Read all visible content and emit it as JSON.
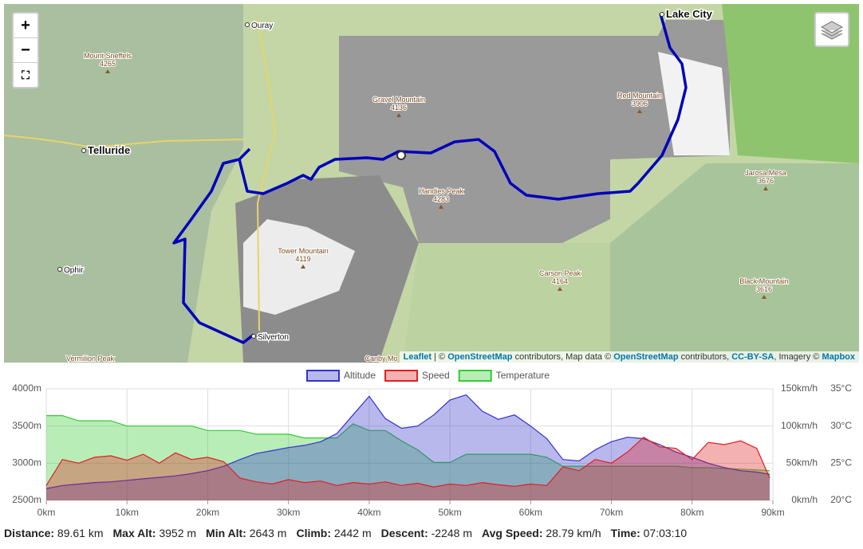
{
  "map": {
    "places": [
      {
        "name": "Ouray"
      },
      {
        "name": "Lake City"
      },
      {
        "name": "Telluride"
      },
      {
        "name": "Ophir"
      },
      {
        "name": "Silverton"
      }
    ],
    "peaks": [
      {
        "name": "Mount Sneffels",
        "elev": "4265"
      },
      {
        "name": "Gravel Mountain",
        "elev": "4136"
      },
      {
        "name": "Red Mountain",
        "elev": "3906"
      },
      {
        "name": "Jarosa Mesa",
        "elev": "3676"
      },
      {
        "name": "Handies Peak",
        "elev": "4283"
      },
      {
        "name": "Tower Mountain",
        "elev": "4119"
      },
      {
        "name": "Carson Peak",
        "elev": "4164"
      },
      {
        "name": "Black Mountain",
        "elev": "3616"
      },
      {
        "name": "Canby Mo"
      },
      {
        "name": "Vermilion Peak"
      }
    ],
    "zoom": [
      "+",
      "−"
    ],
    "attribution": [
      {
        "text": "Leaflet",
        "link": true
      },
      {
        "text": " | © "
      },
      {
        "text": "OpenStreetMap",
        "link": true
      },
      {
        "text": " contributors, Map data © "
      },
      {
        "text": "OpenStreetMap",
        "link": true
      },
      {
        "text": " contributors, "
      },
      {
        "text": "CC-BY-SA",
        "link": true
      },
      {
        "text": ", Imagery © "
      },
      {
        "text": "Mapbox",
        "link": true
      }
    ]
  },
  "chart_data": {
    "type": "area",
    "x": [
      0,
      2,
      4,
      6,
      8,
      10,
      12,
      14,
      16,
      18,
      20,
      22,
      24,
      26,
      28,
      30,
      32,
      34,
      36,
      38,
      40,
      42,
      44,
      46,
      48,
      50,
      52,
      54,
      56,
      58,
      60,
      62,
      64,
      66,
      68,
      70,
      72,
      74,
      76,
      78,
      80,
      82,
      84,
      86,
      88,
      89.6
    ],
    "series": [
      {
        "name": "Temperature",
        "color": "#33cc33",
        "axis": "y3",
        "values": [
          31.4,
          31.4,
          30.7,
          30.7,
          30.7,
          30.0,
          30.0,
          30.0,
          30.0,
          30.0,
          29.4,
          29.4,
          29.4,
          28.9,
          28.9,
          28.9,
          28.4,
          28.4,
          28.4,
          30.3,
          29.4,
          29.4,
          28.0,
          26.8,
          25.1,
          25.1,
          26.2,
          26.2,
          26.2,
          26.2,
          26.2,
          25.8,
          24.6,
          24.6,
          24.6,
          24.6,
          24.6,
          24.6,
          24.6,
          24.6,
          24.4,
          24.4,
          24.3,
          24.2,
          24.1,
          24.0
        ]
      },
      {
        "name": "Altitude",
        "color": "#3333cc",
        "axis": "y",
        "values": [
          2660,
          2700,
          2720,
          2740,
          2750,
          2770,
          2790,
          2810,
          2830,
          2860,
          2900,
          2960,
          3050,
          3130,
          3170,
          3210,
          3240,
          3290,
          3400,
          3650,
          3900,
          3600,
          3470,
          3500,
          3650,
          3850,
          3920,
          3700,
          3590,
          3650,
          3500,
          3330,
          3050,
          3030,
          3180,
          3290,
          3350,
          3330,
          3250,
          3150,
          3080,
          3000,
          2940,
          2900,
          2880,
          2850
        ]
      },
      {
        "name": "Speed",
        "color": "#e02020",
        "axis": "y2",
        "values": [
          20,
          55,
          50,
          58,
          60,
          54,
          62,
          50,
          64,
          55,
          58,
          52,
          30,
          25,
          22,
          28,
          24,
          26,
          20,
          24,
          22,
          25,
          20,
          23,
          18,
          22,
          20,
          24,
          21,
          19,
          22,
          20,
          45,
          40,
          55,
          50,
          65,
          85,
          72,
          70,
          55,
          78,
          75,
          80,
          70,
          30
        ]
      }
    ],
    "xlim": [
      0,
      90
    ],
    "xticks": [
      {
        "value": 0,
        "label": "0km"
      },
      {
        "value": 10,
        "label": "10km"
      },
      {
        "value": 20,
        "label": "20km"
      },
      {
        "value": 30,
        "label": "30km"
      },
      {
        "value": 40,
        "label": "40km"
      },
      {
        "value": 50,
        "label": "50km"
      },
      {
        "value": 60,
        "label": "60km"
      },
      {
        "value": 70,
        "label": "70km"
      },
      {
        "value": 80,
        "label": "80km"
      },
      {
        "value": 90,
        "label": "90km"
      }
    ],
    "ylim": [
      2500,
      4000
    ],
    "yticks": [
      {
        "value": 2500,
        "label": "2500m"
      },
      {
        "value": 3000,
        "label": "3000m"
      },
      {
        "value": 3500,
        "label": "3500m"
      },
      {
        "value": 4000,
        "label": "4000m"
      }
    ],
    "y2lim": [
      0,
      150
    ],
    "y2ticks": [
      {
        "value": 0,
        "label": "0km/h"
      },
      {
        "value": 50,
        "label": "50km/h"
      },
      {
        "value": 100,
        "label": "100km/h"
      },
      {
        "value": 150,
        "label": "150km/h"
      }
    ],
    "y3lim": [
      20,
      35
    ],
    "y3ticks": [
      {
        "value": 20,
        "label": "20°C"
      },
      {
        "value": 25,
        "label": "25°C"
      },
      {
        "value": 30,
        "label": "30°C"
      },
      {
        "value": 35,
        "label": "35°C"
      }
    ],
    "grid": true
  },
  "summary": [
    {
      "label": "Distance:",
      "value": "89.61 km"
    },
    {
      "label": "Max Alt:",
      "value": "3952 m"
    },
    {
      "label": "Min Alt:",
      "value": "2643 m"
    },
    {
      "label": "Climb:",
      "value": "2442 m"
    },
    {
      "label": "Descent:",
      "value": "-2248 m"
    },
    {
      "label": "Avg Speed:",
      "value": "28.79 km/h"
    },
    {
      "label": "Time:",
      "value": "07:03:10"
    }
  ]
}
